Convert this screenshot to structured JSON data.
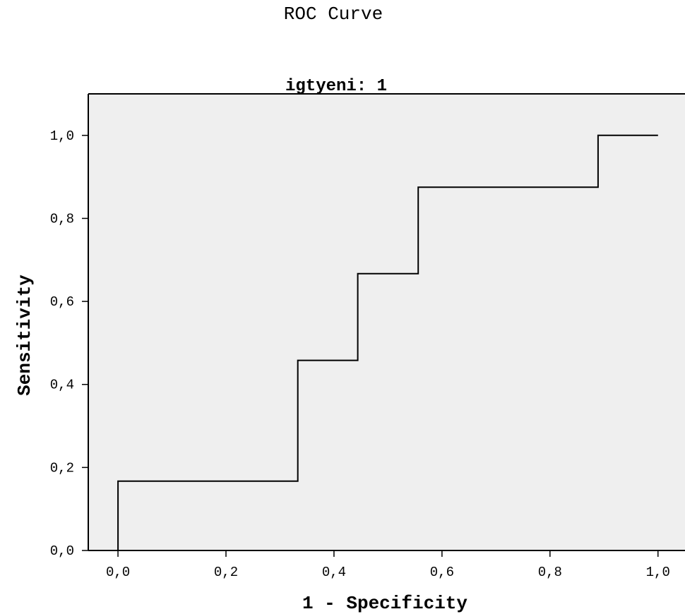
{
  "chart_data": {
    "type": "line",
    "title": "ROC Curve",
    "subtitle": "igtyeni: 1",
    "xlabel": "1 - Specificity",
    "ylabel": "Sensitivity",
    "xlim": [
      -0.055,
      1.05
    ],
    "ylim": [
      0.0,
      1.1
    ],
    "x_ticks": [
      0.0,
      0.2,
      0.4,
      0.6,
      0.8,
      1.0
    ],
    "x_tick_labels": [
      "0,0",
      "0,2",
      "0,4",
      "0,6",
      "0,8",
      "1,0"
    ],
    "y_ticks": [
      0.0,
      0.2,
      0.4,
      0.6,
      0.8,
      1.0
    ],
    "y_tick_labels": [
      "0,0",
      "0,2",
      "0,4",
      "0,6",
      "0,8",
      "1,0"
    ],
    "grid": false,
    "background": "#efefef",
    "line_color": "#000000",
    "series": [
      {
        "step": true,
        "x": [
          0.0,
          0.0,
          0.333,
          0.333,
          0.444,
          0.444,
          0.556,
          0.556,
          0.889,
          0.889,
          1.0
        ],
        "y": [
          0.0,
          0.167,
          0.167,
          0.458,
          0.458,
          0.667,
          0.667,
          0.875,
          0.875,
          1.0,
          1.0
        ]
      }
    ]
  }
}
